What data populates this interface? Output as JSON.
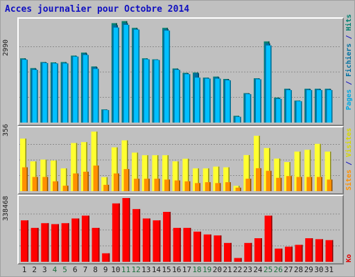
{
  "title": "Acces journalier pour Octobre 2014",
  "axis_max": {
    "pages": "2990",
    "sites": "356",
    "ko": "338468"
  },
  "legend": {
    "pages": "Pages",
    "fichiers": "Fichiers",
    "hits": "Hits",
    "sites": "Sites",
    "visites": "Visites",
    "ko": "Ko",
    "sep": " / "
  },
  "colors": {
    "pages": "#00c0ff",
    "fichiers": "#0070a0",
    "hits": "#008070",
    "visites": "#ffff30",
    "sites": "#ff9000",
    "ko": "#ff0000",
    "weekend_day": "#207040",
    "background": "#c0c0c0"
  },
  "chart_data": [
    {
      "type": "bar",
      "categories": [
        "1",
        "2",
        "3",
        "4",
        "5",
        "6",
        "7",
        "8",
        "9",
        "10",
        "11",
        "12",
        "13",
        "14",
        "15",
        "16",
        "17",
        "18",
        "19",
        "20",
        "21",
        "22",
        "23",
        "24",
        "25",
        "26",
        "27",
        "28",
        "29",
        "30",
        "31"
      ],
      "weekend_days": [
        "4",
        "5",
        "11",
        "12",
        "18",
        "19",
        "25",
        "26"
      ],
      "ylim": [
        0,
        2990
      ],
      "series": [
        {
          "name": "Hits",
          "values": [
            1900,
            1610,
            1790,
            1780,
            1790,
            1980,
            2070,
            1660,
            390,
            2940,
            3000,
            2800,
            1900,
            1870,
            2800,
            1600,
            1470,
            1480,
            1330,
            1360,
            1290,
            200,
            870,
            1310,
            2400,
            740,
            1000,
            650,
            1000,
            1000,
            1000
          ]
        },
        {
          "name": "Fichiers",
          "values": [
            1880,
            1590,
            1780,
            1760,
            1770,
            1960,
            2040,
            1640,
            380,
            2880,
            2940,
            2770,
            1880,
            1860,
            2760,
            1580,
            1450,
            1460,
            1320,
            1340,
            1270,
            180,
            860,
            1300,
            2340,
            720,
            990,
            640,
            990,
            990,
            990
          ]
        },
        {
          "name": "Pages",
          "values": [
            1860,
            1560,
            1760,
            1750,
            1750,
            1950,
            2000,
            1590,
            370,
            2810,
            2890,
            2750,
            1870,
            1850,
            2720,
            1560,
            1430,
            1330,
            1300,
            1300,
            1250,
            170,
            840,
            1280,
            2280,
            700,
            960,
            630,
            960,
            960,
            960
          ]
        }
      ]
    },
    {
      "type": "bar",
      "categories": [
        "1",
        "2",
        "3",
        "4",
        "5",
        "6",
        "7",
        "8",
        "9",
        "10",
        "11",
        "12",
        "13",
        "14",
        "15",
        "16",
        "17",
        "18",
        "19",
        "20",
        "21",
        "22",
        "23",
        "24",
        "25",
        "26",
        "27",
        "28",
        "29",
        "30",
        "31"
      ],
      "ylim": [
        0,
        356
      ],
      "series": [
        {
          "name": "Visites",
          "values": [
            300,
            170,
            180,
            175,
            130,
            275,
            280,
            340,
            80,
            250,
            290,
            220,
            205,
            205,
            205,
            170,
            185,
            130,
            130,
            140,
            136,
            30,
            206,
            316,
            246,
            186,
            166,
            226,
            236,
            270,
            226
          ]
        },
        {
          "name": "Sites",
          "values": [
            136,
            81,
            81,
            56,
            31,
            101,
            111,
            146,
            36,
            101,
            126,
            71,
            71,
            71,
            66,
            61,
            56,
            46,
            51,
            46,
            51,
            20,
            71,
            131,
            116,
            76,
            86,
            81,
            81,
            81,
            66
          ]
        }
      ]
    },
    {
      "type": "bar",
      "categories": [
        "1",
        "2",
        "3",
        "4",
        "5",
        "6",
        "7",
        "8",
        "9",
        "10",
        "11",
        "12",
        "13",
        "14",
        "15",
        "16",
        "17",
        "18",
        "19",
        "20",
        "21",
        "22",
        "23",
        "24",
        "25",
        "26",
        "27",
        "28",
        "29",
        "30",
        "31"
      ],
      "ylim": [
        0,
        338468
      ],
      "series": [
        {
          "name": "Ko",
          "values": [
            220000,
            180000,
            205000,
            200000,
            205000,
            230000,
            245000,
            180000,
            45000,
            310000,
            338468,
            280000,
            230000,
            220000,
            265000,
            180000,
            180000,
            160000,
            145000,
            140000,
            100000,
            20000,
            100000,
            125000,
            245000,
            70000,
            80000,
            90000,
            125000,
            120000,
            115000
          ]
        }
      ]
    }
  ]
}
